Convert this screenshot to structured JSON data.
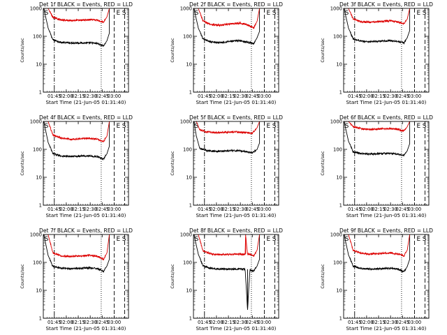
{
  "figure": {
    "colors": {
      "events": "#000000",
      "lld": "#dd0000",
      "axes": "#000000",
      "background": "#ffffff"
    }
  },
  "chart_data": [
    {
      "type": "line",
      "title": "Det 1f BLACK = Events, RED = LLD",
      "xlabel": "Start Time (21-Jun-05 01:31:40)",
      "ylabel": "Counts/sec",
      "yscale": "log",
      "ylim": [
        1,
        1000
      ],
      "xlim": [
        1.52,
        3.3
      ],
      "xticks": [
        "01:45",
        "02:00",
        "02:15",
        "02:30",
        "02:45",
        "03:00"
      ],
      "yticks": [
        "1",
        "10",
        "100",
        "1000"
      ],
      "markers": [
        "S",
        "E",
        "S"
      ],
      "series": [
        {
          "name": "Events",
          "x": [
            1.53,
            1.62,
            1.72,
            1.9,
            2.1,
            2.3,
            2.5,
            2.65,
            2.78,
            2.85,
            2.9
          ],
          "y": [
            1000,
            200,
            75,
            60,
            58,
            58,
            58,
            55,
            45,
            70,
            130
          ]
        },
        {
          "name": "LLD",
          "x": [
            1.53,
            1.62,
            1.72,
            1.9,
            2.1,
            2.3,
            2.5,
            2.65,
            2.78,
            2.85,
            2.9
          ],
          "y": [
            1000,
            1000,
            480,
            380,
            370,
            380,
            390,
            380,
            320,
            500,
            1000
          ]
        }
      ]
    },
    {
      "type": "line",
      "title": "Det 2f BLACK = Events, RED = LLD",
      "xlabel": "Start Time (21-Jun-05 01:31:40)",
      "ylabel": "Counts/sec",
      "yscale": "log",
      "ylim": [
        1,
        1000
      ],
      "xlim": [
        1.52,
        3.3
      ],
      "xticks": [
        "01:45",
        "02:00",
        "02:15",
        "02:30",
        "02:45",
        "03:00"
      ],
      "yticks": [
        "1",
        "10",
        "100",
        "1000"
      ],
      "markers": [
        "S",
        "E",
        "S"
      ],
      "series": [
        {
          "name": "Events",
          "x": [
            1.53,
            1.62,
            1.72,
            1.9,
            2.1,
            2.3,
            2.5,
            2.65,
            2.78,
            2.85,
            2.9
          ],
          "y": [
            1000,
            200,
            80,
            62,
            60,
            66,
            70,
            62,
            55,
            90,
            150
          ]
        },
        {
          "name": "LLD",
          "x": [
            1.53,
            1.62,
            1.72,
            1.9,
            2.1,
            2.3,
            2.5,
            2.65,
            2.78,
            2.85,
            2.9
          ],
          "y": [
            1000,
            1000,
            350,
            260,
            250,
            280,
            300,
            260,
            200,
            350,
            1000
          ]
        }
      ]
    },
    {
      "type": "line",
      "title": "Det 3f BLACK = Events, RED = LLD",
      "xlabel": "Start Time (21-Jun-05 01:31:40)",
      "ylabel": "Counts/sec",
      "yscale": "log",
      "ylim": [
        1,
        1000
      ],
      "xlim": [
        1.52,
        3.3
      ],
      "xticks": [
        "01:45",
        "02:00",
        "02:15",
        "02:30",
        "02:45",
        "03:00"
      ],
      "yticks": [
        "1",
        "10",
        "100",
        "1000"
      ],
      "markers": [
        "S",
        "E",
        "S"
      ],
      "series": [
        {
          "name": "Events",
          "x": [
            1.53,
            1.62,
            1.72,
            1.9,
            2.1,
            2.3,
            2.5,
            2.65,
            2.78,
            2.85,
            2.9
          ],
          "y": [
            1000,
            200,
            80,
            66,
            64,
            66,
            70,
            66,
            58,
            90,
            160
          ]
        },
        {
          "name": "LLD",
          "x": [
            1.53,
            1.62,
            1.72,
            1.9,
            2.1,
            2.3,
            2.5,
            2.65,
            2.78,
            2.85,
            2.9
          ],
          "y": [
            1000,
            1000,
            420,
            330,
            320,
            340,
            360,
            330,
            280,
            420,
            1000
          ]
        }
      ]
    },
    {
      "type": "line",
      "title": "Det 4f BLACK = Events, RED = LLD",
      "xlabel": "Start Time (21-Jun-05 01:31:40)",
      "ylabel": "Counts/sec",
      "yscale": "log",
      "ylim": [
        1,
        1000
      ],
      "xlim": [
        1.52,
        3.3
      ],
      "xticks": [
        "01:45",
        "02:00",
        "02:15",
        "02:30",
        "02:45",
        "03:00"
      ],
      "yticks": [
        "1",
        "10",
        "100",
        "1000"
      ],
      "markers": [
        "S",
        "E",
        "S"
      ],
      "series": [
        {
          "name": "Events",
          "x": [
            1.53,
            1.62,
            1.72,
            1.9,
            2.1,
            2.3,
            2.5,
            2.65,
            2.78,
            2.85,
            2.9
          ],
          "y": [
            1000,
            180,
            70,
            58,
            55,
            58,
            58,
            55,
            45,
            70,
            130
          ]
        },
        {
          "name": "LLD",
          "x": [
            1.53,
            1.62,
            1.72,
            1.9,
            2.1,
            2.3,
            2.5,
            2.65,
            2.78,
            2.85,
            2.9
          ],
          "y": [
            1000,
            1000,
            330,
            250,
            230,
            240,
            250,
            230,
            190,
            300,
            1000
          ]
        }
      ]
    },
    {
      "type": "line",
      "title": "Det 5f BLACK = Events, RED = LLD",
      "xlabel": "Start Time (21-Jun-05 01:31:40)",
      "ylabel": "Counts/sec",
      "yscale": "log",
      "ylim": [
        1,
        1000
      ],
      "xlim": [
        1.52,
        3.3
      ],
      "xticks": [
        "01:45",
        "02:00",
        "02:15",
        "02:30",
        "02:45",
        "03:00"
      ],
      "yticks": [
        "1",
        "10",
        "100",
        "1000"
      ],
      "markers": [
        "S",
        "E",
        "S"
      ],
      "series": [
        {
          "name": "Events",
          "x": [
            1.53,
            1.58,
            1.65,
            1.8,
            2.0,
            2.2,
            2.4,
            2.6,
            2.75,
            2.85,
            2.9
          ],
          "y": [
            1000,
            300,
            110,
            90,
            85,
            88,
            90,
            85,
            75,
            100,
            170
          ]
        },
        {
          "name": "LLD",
          "x": [
            1.53,
            1.58,
            1.65,
            1.8,
            2.0,
            2.2,
            2.4,
            2.6,
            2.75,
            2.85,
            2.9
          ],
          "y": [
            1000,
            1000,
            500,
            420,
            400,
            410,
            420,
            400,
            380,
            600,
            1000
          ]
        }
      ]
    },
    {
      "type": "line",
      "title": "Det 6f BLACK = Events, RED = LLD",
      "xlabel": "Start Time (21-Jun-05 01:31:40)",
      "ylabel": "Counts/sec",
      "yscale": "log",
      "ylim": [
        1,
        1000
      ],
      "xlim": [
        1.52,
        3.3
      ],
      "xticks": [
        "01:45",
        "02:00",
        "02:15",
        "02:30",
        "02:45",
        "03:00"
      ],
      "yticks": [
        "1",
        "10",
        "100",
        "1000"
      ],
      "markers": [
        "S",
        "E",
        "S"
      ],
      "series": [
        {
          "name": "Events",
          "x": [
            1.53,
            1.62,
            1.72,
            1.9,
            2.1,
            2.3,
            2.5,
            2.65,
            2.78,
            2.85,
            2.9
          ],
          "y": [
            1000,
            200,
            80,
            70,
            68,
            70,
            72,
            68,
            60,
            90,
            160
          ]
        },
        {
          "name": "LLD",
          "x": [
            1.53,
            1.62,
            1.72,
            1.9,
            2.1,
            2.3,
            2.5,
            2.65,
            2.78,
            2.85,
            2.9
          ],
          "y": [
            1000,
            1000,
            650,
            540,
            520,
            540,
            560,
            520,
            450,
            650,
            1000
          ]
        }
      ]
    },
    {
      "type": "line",
      "title": "Det 7f BLACK = Events, RED = LLD",
      "xlabel": "Start Time (21-Jun-05 01:31:40)",
      "ylabel": "Counts/sec",
      "yscale": "log",
      "ylim": [
        1,
        1000
      ],
      "xlim": [
        1.52,
        3.3
      ],
      "xticks": [
        "01:45",
        "02:00",
        "02:15",
        "02:30",
        "02:45",
        "03:00"
      ],
      "yticks": [
        "1",
        "10",
        "100",
        "1000"
      ],
      "markers": [
        "S",
        "E",
        "S"
      ],
      "series": [
        {
          "name": "Events",
          "x": [
            1.53,
            1.62,
            1.72,
            1.9,
            2.1,
            2.3,
            2.5,
            2.65,
            2.78,
            2.85,
            2.9
          ],
          "y": [
            1000,
            180,
            72,
            62,
            60,
            62,
            64,
            60,
            48,
            75,
            130
          ]
        },
        {
          "name": "LLD",
          "x": [
            1.53,
            1.62,
            1.72,
            1.9,
            2.1,
            2.3,
            2.5,
            2.65,
            2.78,
            2.85,
            2.9
          ],
          "y": [
            1000,
            1000,
            220,
            170,
            165,
            170,
            180,
            165,
            130,
            220,
            1000
          ]
        }
      ]
    },
    {
      "type": "line",
      "title": "Det 8f BLACK = Events, RED = LLD",
      "xlabel": "Start Time (21-Jun-05 01:31:40)",
      "ylabel": "Counts/sec",
      "yscale": "log",
      "ylim": [
        1,
        1000
      ],
      "xlim": [
        1.52,
        3.3
      ],
      "xticks": [
        "01:45",
        "02:00",
        "02:15",
        "02:30",
        "02:45",
        "03:00"
      ],
      "yticks": [
        "1",
        "10",
        "100",
        "1000"
      ],
      "markers": [
        "S",
        "E",
        "S"
      ],
      "series": [
        {
          "name": "Events",
          "x": [
            1.53,
            1.62,
            1.72,
            1.9,
            2.1,
            2.3,
            2.5,
            2.6,
            2.65,
            2.7,
            2.78,
            2.85,
            2.9
          ],
          "y": [
            1000,
            200,
            75,
            60,
            58,
            58,
            58,
            57,
            2,
            55,
            48,
            75,
            130
          ]
        },
        {
          "name": "LLD",
          "x": [
            1.53,
            1.62,
            1.72,
            1.9,
            2.1,
            2.3,
            2.5,
            2.6,
            2.61,
            2.65,
            2.7,
            2.78,
            2.85,
            2.9
          ],
          "y": [
            1000,
            1000,
            260,
            200,
            190,
            195,
            200,
            195,
            1000,
            195,
            195,
            170,
            280,
            1000
          ]
        }
      ]
    },
    {
      "type": "line",
      "title": "Det 9f BLACK = Events, RED = LLD",
      "xlabel": "Start Time (21-Jun-05 01:31:40)",
      "ylabel": "Counts/sec",
      "yscale": "log",
      "ylim": [
        1,
        1000
      ],
      "xlim": [
        1.52,
        3.3
      ],
      "xticks": [
        "01:45",
        "02:00",
        "02:15",
        "02:30",
        "02:45",
        "03:00"
      ],
      "yticks": [
        "1",
        "10",
        "100",
        "1000"
      ],
      "markers": [
        "S",
        "E",
        "S"
      ],
      "series": [
        {
          "name": "Events",
          "x": [
            1.53,
            1.62,
            1.72,
            1.9,
            2.1,
            2.3,
            2.5,
            2.65,
            2.78,
            2.85,
            2.9
          ],
          "y": [
            1000,
            190,
            72,
            60,
            58,
            60,
            62,
            58,
            46,
            72,
            130
          ]
        },
        {
          "name": "LLD",
          "x": [
            1.53,
            1.62,
            1.72,
            1.9,
            2.1,
            2.3,
            2.5,
            2.65,
            2.78,
            2.85,
            2.9
          ],
          "y": [
            1000,
            1000,
            270,
            210,
            200,
            210,
            220,
            200,
            170,
            280,
            1000
          ]
        }
      ]
    }
  ]
}
